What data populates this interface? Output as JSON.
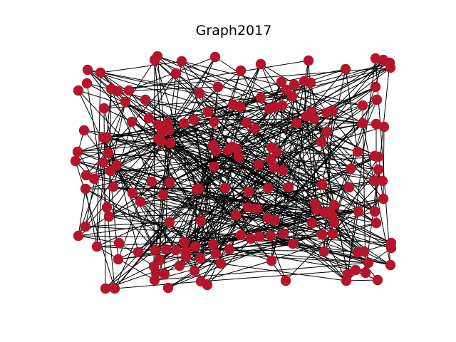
{
  "title": "Graph2017",
  "node_color": "#b5152b",
  "edge_color": "#000000",
  "background": "#ffffff"
}
